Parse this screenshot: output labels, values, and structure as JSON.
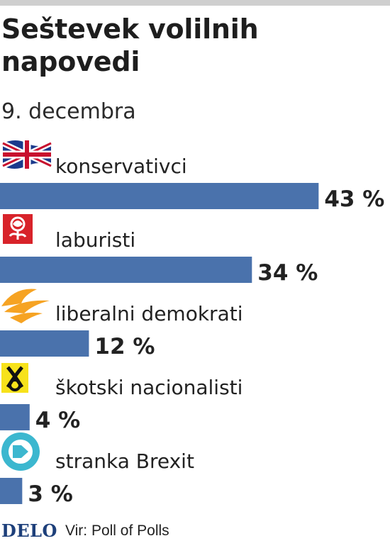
{
  "header": {
    "title": "Seštevek volilnih napovedi",
    "subtitle": "9. decembra"
  },
  "chart_data": {
    "type": "bar",
    "orientation": "horizontal",
    "categories": [
      "konservativci",
      "laburisti",
      "liberalni demokrati",
      "škotski nacionalisti",
      "stranka Brexit"
    ],
    "values": [
      43,
      34,
      12,
      4,
      3
    ],
    "value_labels": [
      "43 %",
      "34 %",
      "12 %",
      "4 %",
      "3 %"
    ],
    "icons": [
      "union-jack-icon",
      "rose-icon",
      "bird-icon",
      "snp-icon",
      "arrow-icon"
    ],
    "unit": "%",
    "xlim": [
      0,
      44
    ],
    "grid": false,
    "legend": "none",
    "bar_color": "#4a72ac"
  },
  "footer": {
    "brand": "DELO",
    "source": "Vir: Poll of Polls"
  },
  "colors": {
    "bar": "#4a72ac",
    "text": "#222222",
    "brand": "#1d3f7a",
    "labour_red": "#d8232a",
    "snp_yellow": "#f7e21b",
    "libdem_orange": "#f6a323",
    "brexit_cyan": "#3cb7cf"
  }
}
